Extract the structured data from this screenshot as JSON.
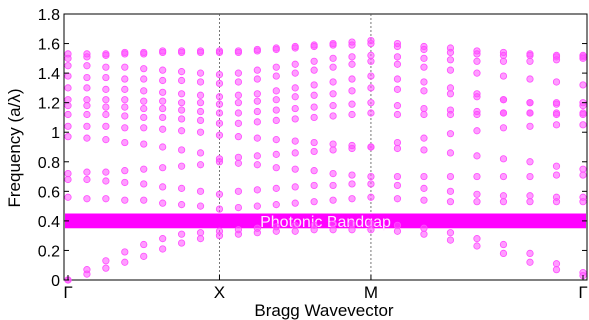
{
  "chart_data": {
    "type": "scatter",
    "title": "",
    "xlabel": "Bragg Wavevector",
    "ylabel": "Frequency (a/λ)",
    "xlim": [
      0,
      2.2
    ],
    "ylim": [
      0,
      1.8
    ],
    "x_ticks": [
      {
        "value": 0,
        "label": "Γ"
      },
      {
        "value": 0.5,
        "label": "X"
      },
      {
        "value": 1.0,
        "label": "M"
      },
      {
        "value": 1.7,
        "label": "Γ"
      }
    ],
    "y_ticks": [
      0,
      0.2,
      0.4,
      0.6,
      0.8,
      1,
      1.2,
      1.4,
      1.6,
      1.8
    ],
    "grid": "vertical at symmetry points",
    "marker_color": "#ff4dff",
    "band_color": "#ff00ff",
    "band_label_color": "#ffe6ff",
    "k_samples": [
      0,
      0.0625,
      0.125,
      0.1875,
      0.25,
      0.3125,
      0.375,
      0.4375,
      0.5,
      0.5625,
      0.625,
      0.6875,
      0.75,
      0.8125,
      0.875,
      0.9375,
      1.0,
      1.0875,
      1.175,
      1.2625,
      1.35,
      1.4375,
      1.525,
      1.6125,
      1.7
    ],
    "series": [
      {
        "values": [
          0.0,
          0.04,
          0.08,
          0.12,
          0.16,
          0.21,
          0.25,
          0.28,
          0.3,
          0.31,
          0.32,
          0.33,
          0.33,
          0.34,
          0.34,
          0.34,
          0.34,
          0.33,
          0.31,
          0.27,
          0.23,
          0.18,
          0.12,
          0.07,
          0.03
        ]
      },
      {
        "values": [
          0.0,
          0.07,
          0.13,
          0.19,
          0.24,
          0.28,
          0.31,
          0.32,
          0.33,
          0.34,
          0.35,
          0.36,
          0.37,
          0.37,
          0.38,
          0.38,
          0.38,
          0.37,
          0.35,
          0.32,
          0.28,
          0.24,
          0.18,
          0.11,
          0.05
        ]
      },
      {
        "values": [
          0.56,
          0.55,
          0.55,
          0.54,
          0.54,
          0.52,
          0.51,
          0.5,
          0.48,
          0.49,
          0.5,
          0.51,
          0.52,
          0.53,
          0.54,
          0.55,
          0.56,
          0.55,
          0.54,
          0.53,
          0.53,
          0.53,
          0.53,
          0.53,
          0.53
        ]
      },
      {
        "values": [
          0.68,
          0.68,
          0.67,
          0.66,
          0.65,
          0.63,
          0.62,
          0.6,
          0.58,
          0.6,
          0.61,
          0.62,
          0.63,
          0.64,
          0.64,
          0.65,
          0.65,
          0.64,
          0.62,
          0.6,
          0.58,
          0.57,
          0.57,
          0.56,
          0.56
        ]
      },
      {
        "values": [
          0.72,
          0.73,
          0.73,
          0.74,
          0.75,
          0.76,
          0.77,
          0.78,
          0.8,
          0.79,
          0.78,
          0.76,
          0.75,
          0.74,
          0.72,
          0.71,
          0.7,
          0.7,
          0.7,
          0.7,
          0.7,
          0.7,
          0.7,
          0.71,
          0.71
        ]
      },
      {
        "values": [
          0.97,
          0.96,
          0.95,
          0.93,
          0.92,
          0.9,
          0.88,
          0.86,
          0.82,
          0.83,
          0.84,
          0.85,
          0.86,
          0.87,
          0.88,
          0.89,
          0.9,
          0.89,
          0.88,
          0.86,
          0.84,
          0.82,
          0.8,
          0.77,
          0.75
        ]
      },
      {
        "values": [
          1.04,
          1.04,
          1.04,
          1.03,
          1.03,
          1.02,
          1.01,
          1.0,
          0.98,
          0.97,
          0.96,
          0.95,
          0.94,
          0.93,
          0.92,
          0.91,
          0.9,
          0.93,
          0.96,
          0.99,
          1.01,
          1.03,
          1.04,
          1.05,
          1.05
        ]
      },
      {
        "values": [
          1.12,
          1.12,
          1.12,
          1.11,
          1.1,
          1.1,
          1.09,
          1.08,
          1.06,
          1.06,
          1.07,
          1.08,
          1.09,
          1.1,
          1.11,
          1.12,
          1.13,
          1.12,
          1.12,
          1.12,
          1.12,
          1.13,
          1.13,
          1.13,
          1.13
        ]
      },
      {
        "values": [
          1.18,
          1.18,
          1.17,
          1.17,
          1.16,
          1.16,
          1.15,
          1.14,
          1.13,
          1.13,
          1.14,
          1.15,
          1.16,
          1.17,
          1.18,
          1.19,
          1.2,
          1.18,
          1.16,
          1.15,
          1.14,
          1.13,
          1.13,
          1.12,
          1.12
        ]
      },
      {
        "values": [
          1.22,
          1.22,
          1.22,
          1.22,
          1.21,
          1.21,
          1.2,
          1.2,
          1.19,
          1.2,
          1.21,
          1.22,
          1.24,
          1.25,
          1.26,
          1.28,
          1.3,
          1.29,
          1.28,
          1.26,
          1.24,
          1.22,
          1.2,
          1.19,
          1.18
        ]
      },
      {
        "values": [
          1.3,
          1.3,
          1.29,
          1.29,
          1.28,
          1.27,
          1.26,
          1.25,
          1.24,
          1.25,
          1.26,
          1.28,
          1.3,
          1.32,
          1.34,
          1.36,
          1.38,
          1.36,
          1.34,
          1.3,
          1.26,
          1.22,
          1.2,
          1.2,
          1.2
        ]
      },
      {
        "values": [
          1.38,
          1.37,
          1.37,
          1.36,
          1.36,
          1.35,
          1.35,
          1.34,
          1.33,
          1.34,
          1.36,
          1.38,
          1.4,
          1.42,
          1.44,
          1.46,
          1.48,
          1.46,
          1.44,
          1.42,
          1.4,
          1.38,
          1.36,
          1.34,
          1.32
        ]
      },
      {
        "values": [
          1.45,
          1.45,
          1.44,
          1.44,
          1.43,
          1.42,
          1.41,
          1.4,
          1.39,
          1.4,
          1.42,
          1.44,
          1.46,
          1.48,
          1.5,
          1.51,
          1.52,
          1.51,
          1.5,
          1.49,
          1.48,
          1.48,
          1.48,
          1.49,
          1.5
        ]
      },
      {
        "values": [
          1.5,
          1.51,
          1.52,
          1.53,
          1.53,
          1.54,
          1.54,
          1.54,
          1.54,
          1.54,
          1.55,
          1.56,
          1.57,
          1.58,
          1.59,
          1.59,
          1.6,
          1.58,
          1.56,
          1.54,
          1.53,
          1.52,
          1.52,
          1.51,
          1.51
        ]
      },
      {
        "values": [
          1.53,
          1.53,
          1.53,
          1.54,
          1.54,
          1.55,
          1.55,
          1.55,
          1.55,
          1.55,
          1.56,
          1.57,
          1.58,
          1.59,
          1.6,
          1.61,
          1.62,
          1.6,
          1.58,
          1.57,
          1.55,
          1.54,
          1.53,
          1.52,
          1.52
        ]
      }
    ],
    "annotations": [
      {
        "text": "Photonic Bandgap",
        "y_from": 0.35,
        "y_to": 0.45
      }
    ]
  }
}
